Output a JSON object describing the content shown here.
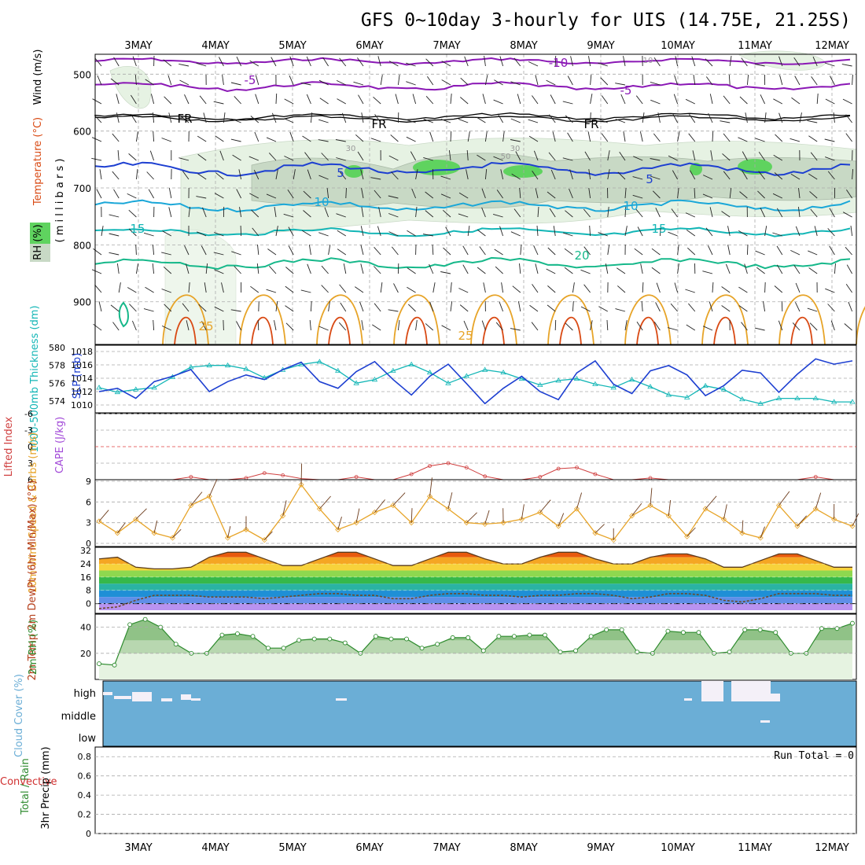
{
  "title": "GFS 0~10day 3-hourly for UIS (14.75E, 21.25S)",
  "dates": [
    "3MAY",
    "4MAY",
    "5MAY",
    "6MAY",
    "7MAY",
    "8MAY",
    "9MAY",
    "10MAY",
    "11MAY",
    "12MAY"
  ],
  "colors": {
    "rh_green": "#5fd35f",
    "purple": "#8a17b5",
    "blue": "#1d3fd1",
    "cyan": "#1aa7d8",
    "teal": "#13b6b6",
    "green": "#16b88a",
    "orange": "#e7a428",
    "red": "#d94a14",
    "cloud": "#6baed6",
    "lavender": "#b993f0"
  },
  "chart_data": [
    {
      "type": "heatmap",
      "id": "profile",
      "ylabel_wind": "Wind (m/s)",
      "ylabel_temp": "Temperature (°C)",
      "ylabel_rh": "RH (%)",
      "ylabel_mb": "( m i l l i b a r s )",
      "ylim": [
        975,
        465
      ],
      "yticks": [
        500,
        600,
        700,
        800,
        900
      ],
      "contour_labels": [
        "-10",
        "-5",
        "-5",
        "FR",
        "FR",
        "FR",
        "5",
        "5",
        "10",
        "10",
        "15",
        "15",
        "20",
        "25",
        "25",
        "30",
        "30",
        "50",
        "10"
      ]
    },
    {
      "type": "line",
      "id": "thickness_slp",
      "ylabel_left": "1000-500mb Thickness (dm)",
      "ylabel_right": "SLP (mb)",
      "yticks_left": [
        574,
        576,
        578,
        580
      ],
      "yticks_right": [
        1010,
        1012,
        1014,
        1016,
        1018
      ],
      "series": [
        {
          "name": "Thickness",
          "axis": "left",
          "values": [
            575.5,
            575,
            575.3,
            575.5,
            576.7,
            577.8,
            578,
            578,
            577.6,
            576.6,
            577.5,
            578.1,
            578.4,
            577.4,
            576,
            576.4,
            577.4,
            578.1,
            577.2,
            576,
            576.8,
            577.5,
            577.2,
            576.5,
            575.8,
            576.3,
            576.5,
            575.9,
            575.5,
            576.4,
            575.6,
            574.7,
            574.4,
            575.7,
            575.3,
            574.2,
            573.7,
            574.3,
            574.3,
            574.3,
            573.9,
            573.9
          ]
        },
        {
          "name": "SLP",
          "axis": "right",
          "values": [
            1012,
            1012.5,
            1011,
            1013.5,
            1014.3,
            1015.3,
            1012,
            1013.5,
            1014.5,
            1013.8,
            1015.3,
            1016.4,
            1013.5,
            1012.5,
            1015,
            1016.5,
            1013.8,
            1011.5,
            1014.3,
            1016.1,
            1013.2,
            1010.2,
            1012.5,
            1014.3,
            1012,
            1010.8,
            1014.8,
            1016.6,
            1013.1,
            1011.7,
            1015.1,
            1015.9,
            1014.5,
            1011.4,
            1012.9,
            1015.2,
            1014.8,
            1011.9,
            1014.6,
            1016.9,
            1016.1,
            1016.6
          ]
        }
      ]
    },
    {
      "type": "line",
      "id": "li_cape",
      "ylabel_li": "Lifted Index",
      "ylabel_cape": "CAPE (J/kg)",
      "yticks": [
        "-6",
        "-3",
        "0",
        "3",
        "6"
      ],
      "ylim": [
        -6,
        6
      ],
      "series": [
        {
          "name": "Lifted Index",
          "values": [
            6,
            6,
            6,
            6,
            6,
            5.5,
            6,
            6,
            5.7,
            4.8,
            5.2,
            5.8,
            6,
            6,
            5.5,
            6,
            6,
            5,
            3.5,
            3,
            3.8,
            5.4,
            6,
            6,
            5.5,
            4,
            3.8,
            5,
            6,
            6,
            5.7,
            6,
            6,
            6,
            6,
            6,
            6,
            6,
            6,
            5.5,
            6,
            6
          ]
        }
      ]
    },
    {
      "type": "line",
      "id": "wind10m",
      "ylabel": "10m Wind Speed & Barbs (m/s)",
      "yticks": [
        0,
        3,
        6,
        9
      ],
      "ylim": [
        0,
        9
      ],
      "series": [
        {
          "name": "10m Wind Speed",
          "values": [
            3.2,
            1.5,
            3.5,
            1.5,
            0.8,
            5.5,
            6.8,
            0.8,
            2,
            0.5,
            4,
            8.5,
            5,
            2,
            3,
            4.5,
            5.5,
            3,
            6.8,
            5,
            3,
            2.8,
            3,
            3.5,
            4.5,
            2.5,
            5,
            1.5,
            0.5,
            4,
            5.5,
            4,
            1,
            5,
            3.5,
            1.5,
            0.8,
            5.5,
            2.5,
            5,
            3.5,
            2.5
          ]
        }
      ]
    },
    {
      "type": "area",
      "id": "temp2m",
      "ylabel": "2m Temp 2m DewPt (6hr Min/Max) (°C)",
      "yticks": [
        0,
        8,
        16,
        24,
        32
      ],
      "ylim": [
        -4,
        34
      ],
      "series": [
        {
          "name": "2m Temp",
          "values": [
            27,
            28,
            22,
            21,
            21,
            22,
            28,
            31,
            31,
            27,
            23,
            23,
            27,
            31,
            31,
            27,
            23,
            23,
            27,
            31,
            31,
            27,
            24,
            24,
            28,
            31,
            31,
            27,
            24,
            24,
            28,
            30,
            30,
            27,
            22,
            22,
            26,
            30,
            30,
            26,
            22,
            22
          ]
        },
        {
          "name": "2m DewPt",
          "values": [
            -3,
            -2,
            2,
            5,
            5,
            5,
            4,
            4,
            4,
            3,
            4,
            5,
            6,
            6,
            5,
            5,
            3,
            3,
            5,
            6,
            6,
            5,
            5,
            4,
            5,
            5,
            6,
            6,
            5,
            3,
            4,
            6,
            6,
            5,
            2,
            1,
            3,
            6,
            6,
            6,
            5,
            5
          ]
        }
      ]
    },
    {
      "type": "area",
      "id": "rh2m",
      "ylabel": "2m RH (%)",
      "yticks": [
        20,
        40
      ],
      "ylim": [
        0,
        50
      ],
      "series": [
        {
          "name": "2m RH",
          "values": [
            12,
            11,
            42,
            46,
            40,
            27,
            20,
            20,
            34,
            35,
            33,
            24,
            24,
            30,
            31,
            31,
            28,
            20,
            33,
            31,
            31,
            24,
            27,
            32,
            32,
            22,
            33,
            33,
            34,
            34,
            21,
            22,
            33,
            38,
            38,
            21,
            20,
            37,
            36,
            36,
            20,
            21,
            38,
            38,
            36,
            20,
            20,
            39,
            39,
            43
          ]
        }
      ]
    },
    {
      "type": "heatmap",
      "id": "cloud",
      "ylabel": "Cloud Cover (%)",
      "levels": [
        "high",
        "middle",
        "low"
      ]
    },
    {
      "type": "bar",
      "id": "precip",
      "ylabel_left": "Total / Rain",
      "ylabel_conv": "Convective",
      "ylabel": "3hr Precip (mm)",
      "yticks": [
        "0",
        "0.2",
        "0.4",
        "0.6",
        "0.8"
      ],
      "ylim": [
        0,
        0.9
      ],
      "run_total": "Run Total = 0",
      "values": []
    }
  ]
}
